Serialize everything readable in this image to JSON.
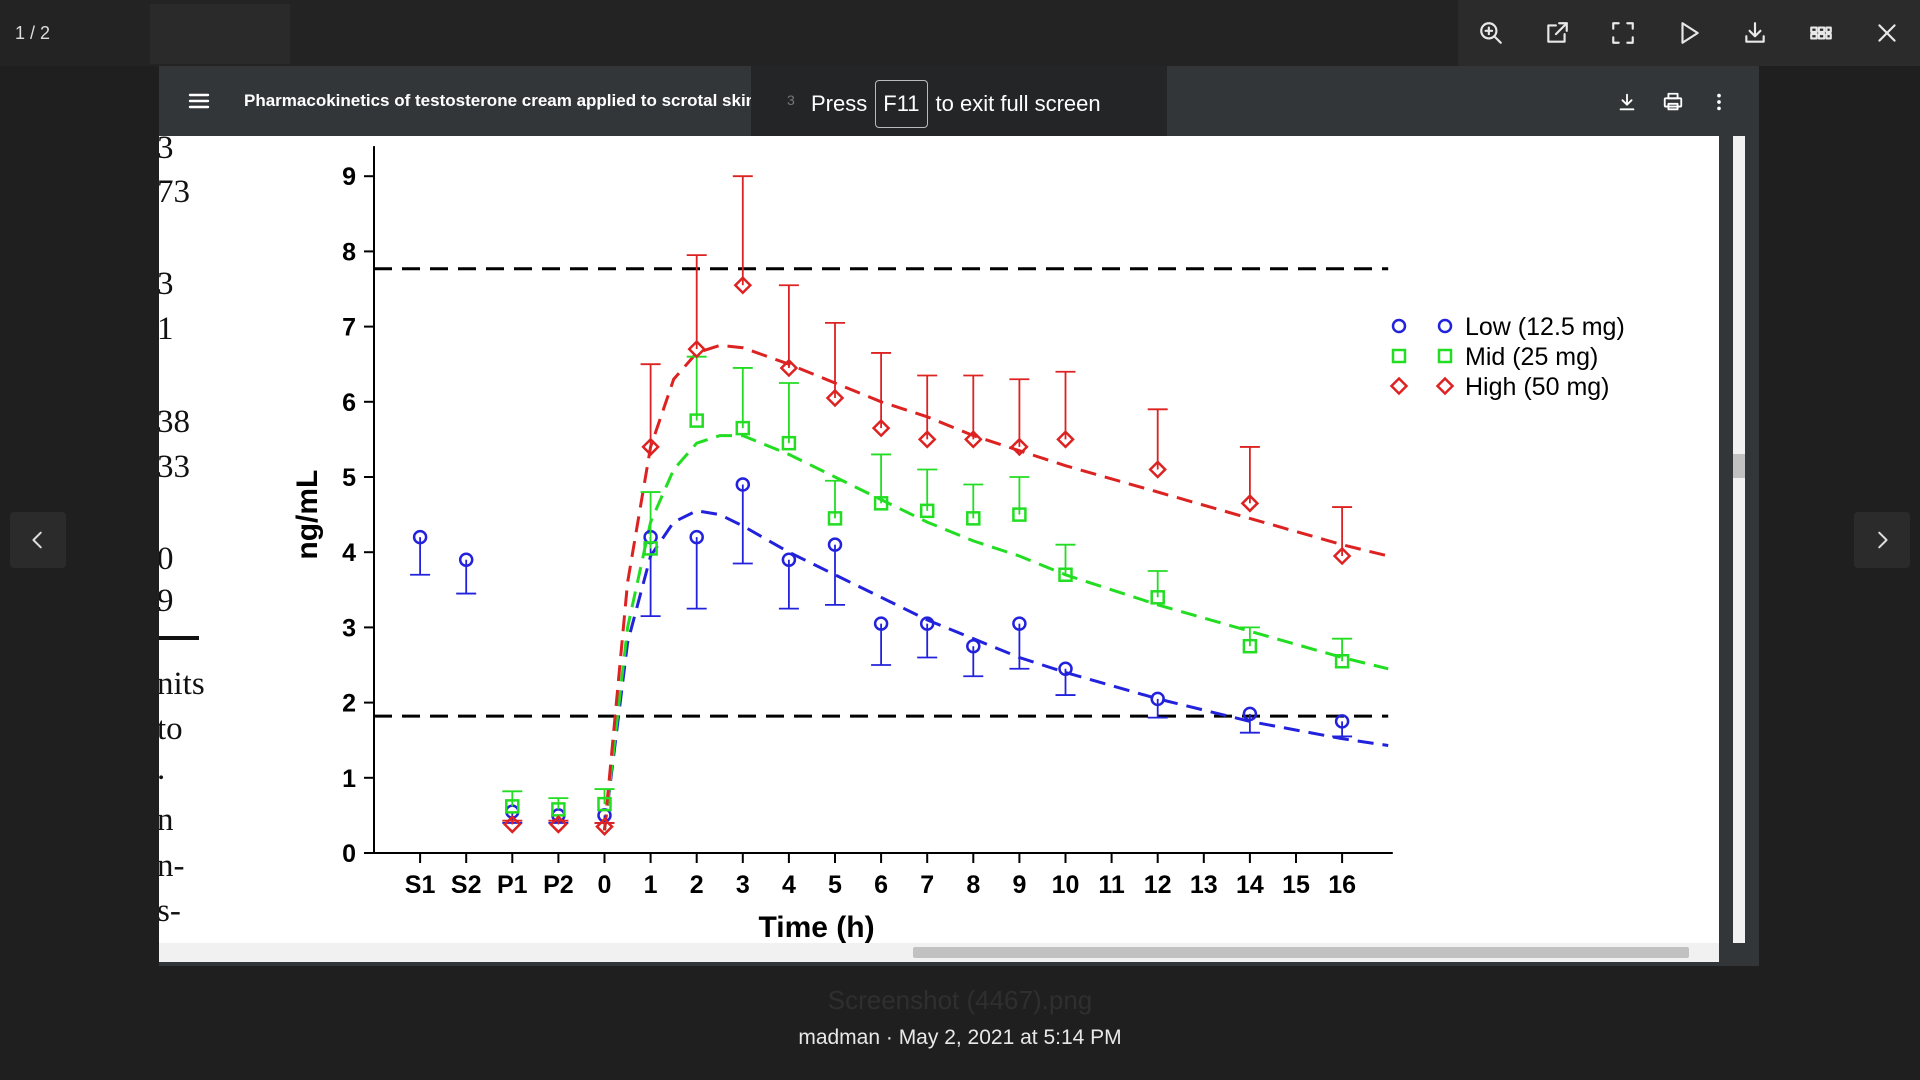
{
  "app": {
    "page_counter": "1 / 2",
    "toolbar_icons": [
      "zoom-in-icon",
      "open-external-icon",
      "fullscreen-icon",
      "play-icon",
      "download-icon",
      "grid-icon",
      "close-icon"
    ],
    "caption": "madman · May 2, 2021 at 5:14 PM",
    "filename": "Screenshot (4467).png"
  },
  "viewer": {
    "title": "Pharmacokinetics of testosterone cream applied to scrotal skin",
    "fullscreen_banner": {
      "ghost": "3",
      "pre": "Press",
      "key": "F11",
      "post": "to exit full screen"
    }
  },
  "side_text": [
    "3",
    "73",
    "3",
    "1",
    "38",
    "33",
    "0",
    "9",
    "nits",
    "to",
    ".",
    "n",
    "n-",
    "s-"
  ],
  "chart_data": {
    "type": "scatter",
    "xlabel": "Time (h)",
    "ylabel": "ng/mL",
    "categories": [
      "S1",
      "S2",
      "P1",
      "P2",
      "0",
      "1",
      "2",
      "3",
      "4",
      "5",
      "6",
      "7",
      "8",
      "9",
      "10",
      "11",
      "12",
      "13",
      "14",
      "15",
      "16"
    ],
    "ylim": [
      0,
      9
    ],
    "yticks": [
      0,
      1,
      2,
      3,
      4,
      5,
      6,
      7,
      8,
      9
    ],
    "reference_lines": [
      7.77,
      1.82
    ],
    "legend_position": "top-right",
    "series": [
      {
        "name": "Low (12.5 mg)",
        "color": "#2222dd",
        "marker": "circle",
        "points": [
          {
            "x": "S1",
            "y": 4.2,
            "err": 0.5
          },
          {
            "x": "S2",
            "y": 3.9,
            "err": 0.45
          },
          {
            "x": "P1",
            "y": 0.55,
            "err": 0.15
          },
          {
            "x": "P2",
            "y": 0.5,
            "err": 0.1
          },
          {
            "x": "0",
            "y": 0.5,
            "err": 0.1
          },
          {
            "x": "1",
            "y": 4.2,
            "err": 1.05
          },
          {
            "x": "2",
            "y": 4.2,
            "err": 0.95
          },
          {
            "x": "3",
            "y": 4.9,
            "err": 1.05
          },
          {
            "x": "4",
            "y": 3.9,
            "err": 0.65
          },
          {
            "x": "5",
            "y": 4.1,
            "err": 0.8
          },
          {
            "x": "6",
            "y": 3.05,
            "err": 0.55
          },
          {
            "x": "7",
            "y": 3.05,
            "err": 0.45
          },
          {
            "x": "8",
            "y": 2.75,
            "err": 0.4
          },
          {
            "x": "9",
            "y": 3.05,
            "err": 0.6
          },
          {
            "x": "10",
            "y": 2.45,
            "err": 0.35
          },
          {
            "x": "12",
            "y": 2.05,
            "err": 0.25
          },
          {
            "x": "14",
            "y": 1.85,
            "err": 0.25
          },
          {
            "x": "16",
            "y": 1.75,
            "err": 0.2
          }
        ],
        "curve": [
          [
            0,
            0.3
          ],
          [
            0.5,
            2.8
          ],
          [
            1,
            3.95
          ],
          [
            1.5,
            4.4
          ],
          [
            2,
            4.55
          ],
          [
            2.5,
            4.5
          ],
          [
            3,
            4.35
          ],
          [
            4,
            4.0
          ],
          [
            5,
            3.7
          ],
          [
            6,
            3.4
          ],
          [
            7,
            3.1
          ],
          [
            8,
            2.85
          ],
          [
            9,
            2.6
          ],
          [
            10,
            2.4
          ],
          [
            12,
            2.05
          ],
          [
            14,
            1.75
          ],
          [
            16,
            1.52
          ],
          [
            17,
            1.43
          ]
        ]
      },
      {
        "name": "Mid (25 mg)",
        "color": "#22dd22",
        "marker": "square",
        "points": [
          {
            "x": "P1",
            "y": 0.62,
            "err": 0.2
          },
          {
            "x": "P2",
            "y": 0.58,
            "err": 0.15
          },
          {
            "x": "0",
            "y": 0.65,
            "err": 0.2
          },
          {
            "x": "1",
            "y": 4.05,
            "err": 0.75
          },
          {
            "x": "2",
            "y": 5.75,
            "err": 0.85
          },
          {
            "x": "3",
            "y": 5.65,
            "err": 0.8
          },
          {
            "x": "4",
            "y": 5.45,
            "err": 0.8
          },
          {
            "x": "5",
            "y": 4.45,
            "err": 0.5
          },
          {
            "x": "6",
            "y": 4.65,
            "err": 0.65
          },
          {
            "x": "7",
            "y": 4.55,
            "err": 0.55
          },
          {
            "x": "8",
            "y": 4.45,
            "err": 0.45
          },
          {
            "x": "9",
            "y": 4.5,
            "err": 0.5
          },
          {
            "x": "10",
            "y": 3.7,
            "err": 0.4
          },
          {
            "x": "12",
            "y": 3.4,
            "err": 0.35
          },
          {
            "x": "14",
            "y": 2.75,
            "err": 0.25
          },
          {
            "x": "16",
            "y": 2.55,
            "err": 0.3
          }
        ],
        "curve": [
          [
            0,
            0.3
          ],
          [
            0.5,
            3.0
          ],
          [
            1,
            4.4
          ],
          [
            1.5,
            5.1
          ],
          [
            2,
            5.45
          ],
          [
            2.5,
            5.55
          ],
          [
            3,
            5.55
          ],
          [
            4,
            5.3
          ],
          [
            5,
            5.0
          ],
          [
            6,
            4.7
          ],
          [
            7,
            4.4
          ],
          [
            8,
            4.15
          ],
          [
            9,
            3.95
          ],
          [
            10,
            3.7
          ],
          [
            12,
            3.3
          ],
          [
            14,
            2.95
          ],
          [
            16,
            2.6
          ],
          [
            17,
            2.45
          ]
        ]
      },
      {
        "name": "High (50 mg)",
        "color": "#dd2222",
        "marker": "diamond",
        "points": [
          {
            "x": "P1",
            "y": 0.38,
            "err": 0.05
          },
          {
            "x": "P2",
            "y": 0.38,
            "err": 0.05
          },
          {
            "x": "0",
            "y": 0.35,
            "err": 0.05
          },
          {
            "x": "1",
            "y": 5.4,
            "err": 1.1
          },
          {
            "x": "2",
            "y": 6.7,
            "err": 1.25
          },
          {
            "x": "3",
            "y": 7.55,
            "err": 1.45
          },
          {
            "x": "4",
            "y": 6.45,
            "err": 1.1
          },
          {
            "x": "5",
            "y": 6.05,
            "err": 1.0
          },
          {
            "x": "6",
            "y": 5.65,
            "err": 1.0
          },
          {
            "x": "7",
            "y": 5.5,
            "err": 0.85
          },
          {
            "x": "8",
            "y": 5.5,
            "err": 0.85
          },
          {
            "x": "9",
            "y": 5.4,
            "err": 0.9
          },
          {
            "x": "10",
            "y": 5.5,
            "err": 0.9
          },
          {
            "x": "12",
            "y": 5.1,
            "err": 0.8
          },
          {
            "x": "14",
            "y": 4.65,
            "err": 0.75
          },
          {
            "x": "16",
            "y": 3.95,
            "err": 0.65
          }
        ],
        "curve": [
          [
            0,
            0.3
          ],
          [
            0.5,
            3.6
          ],
          [
            1,
            5.4
          ],
          [
            1.5,
            6.3
          ],
          [
            2,
            6.65
          ],
          [
            2.5,
            6.75
          ],
          [
            3,
            6.72
          ],
          [
            4,
            6.5
          ],
          [
            5,
            6.25
          ],
          [
            6,
            6.0
          ],
          [
            7,
            5.8
          ],
          [
            8,
            5.55
          ],
          [
            9,
            5.35
          ],
          [
            10,
            5.15
          ],
          [
            12,
            4.8
          ],
          [
            14,
            4.45
          ],
          [
            16,
            4.1
          ],
          [
            17,
            3.95
          ]
        ]
      }
    ]
  }
}
